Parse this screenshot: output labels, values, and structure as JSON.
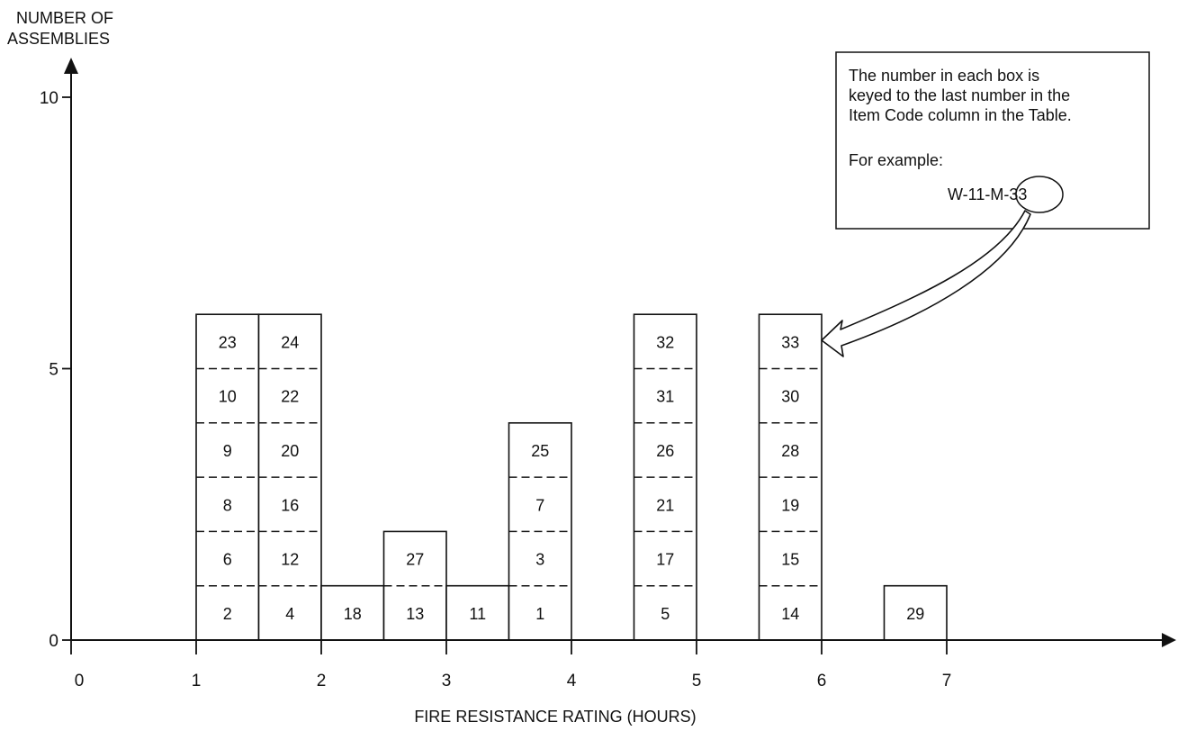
{
  "chart_data": {
    "type": "bar",
    "subtype": "stacked-histogram",
    "xlabel": "FIRE RESISTANCE RATING (HOURS)",
    "ylabel_lines": [
      "NUMBER OF",
      "ASSEMBLIES"
    ],
    "xlim": [
      0,
      8.2
    ],
    "ylim": [
      0,
      10
    ],
    "x_ticks": [
      0,
      1,
      2,
      3,
      4,
      5,
      6,
      7
    ],
    "x_tick_labels": [
      "0",
      "1",
      "2",
      "3",
      "4",
      "5",
      "6",
      "7"
    ],
    "y_ticks": [
      0,
      5,
      10
    ],
    "y_tick_labels": [
      "0",
      "5",
      "10"
    ],
    "grid": false,
    "bin_width_hours": 0.5,
    "bins": [
      {
        "start": 1.0,
        "end": 1.5,
        "count": 6,
        "items": [
          "2",
          "6",
          "8",
          "9",
          "10",
          "23"
        ]
      },
      {
        "start": 1.5,
        "end": 2.0,
        "count": 6,
        "items": [
          "4",
          "12",
          "16",
          "20",
          "22",
          "24"
        ]
      },
      {
        "start": 2.0,
        "end": 2.5,
        "count": 1,
        "items": [
          "18"
        ]
      },
      {
        "start": 2.5,
        "end": 3.0,
        "count": 2,
        "items": [
          "13",
          "27"
        ]
      },
      {
        "start": 3.0,
        "end": 3.5,
        "count": 1,
        "items": [
          "11"
        ]
      },
      {
        "start": 3.5,
        "end": 4.0,
        "count": 4,
        "items": [
          "1",
          "3",
          "7",
          "25"
        ]
      },
      {
        "start": 4.5,
        "end": 5.0,
        "count": 6,
        "items": [
          "5",
          "17",
          "21",
          "26",
          "31",
          "32"
        ]
      },
      {
        "start": 5.5,
        "end": 6.0,
        "count": 6,
        "items": [
          "14",
          "15",
          "19",
          "28",
          "30",
          "33"
        ]
      },
      {
        "start": 6.5,
        "end": 7.0,
        "count": 1,
        "items": [
          "29"
        ]
      }
    ],
    "annotation": {
      "lines": [
        "The number in each box is",
        "keyed to the last number in the",
        "Item Code column in the Table."
      ],
      "example_label": "For example:",
      "example_code_prefix": "W-11-M",
      "example_code_suffix": "-33",
      "points_to_item": "33"
    }
  }
}
